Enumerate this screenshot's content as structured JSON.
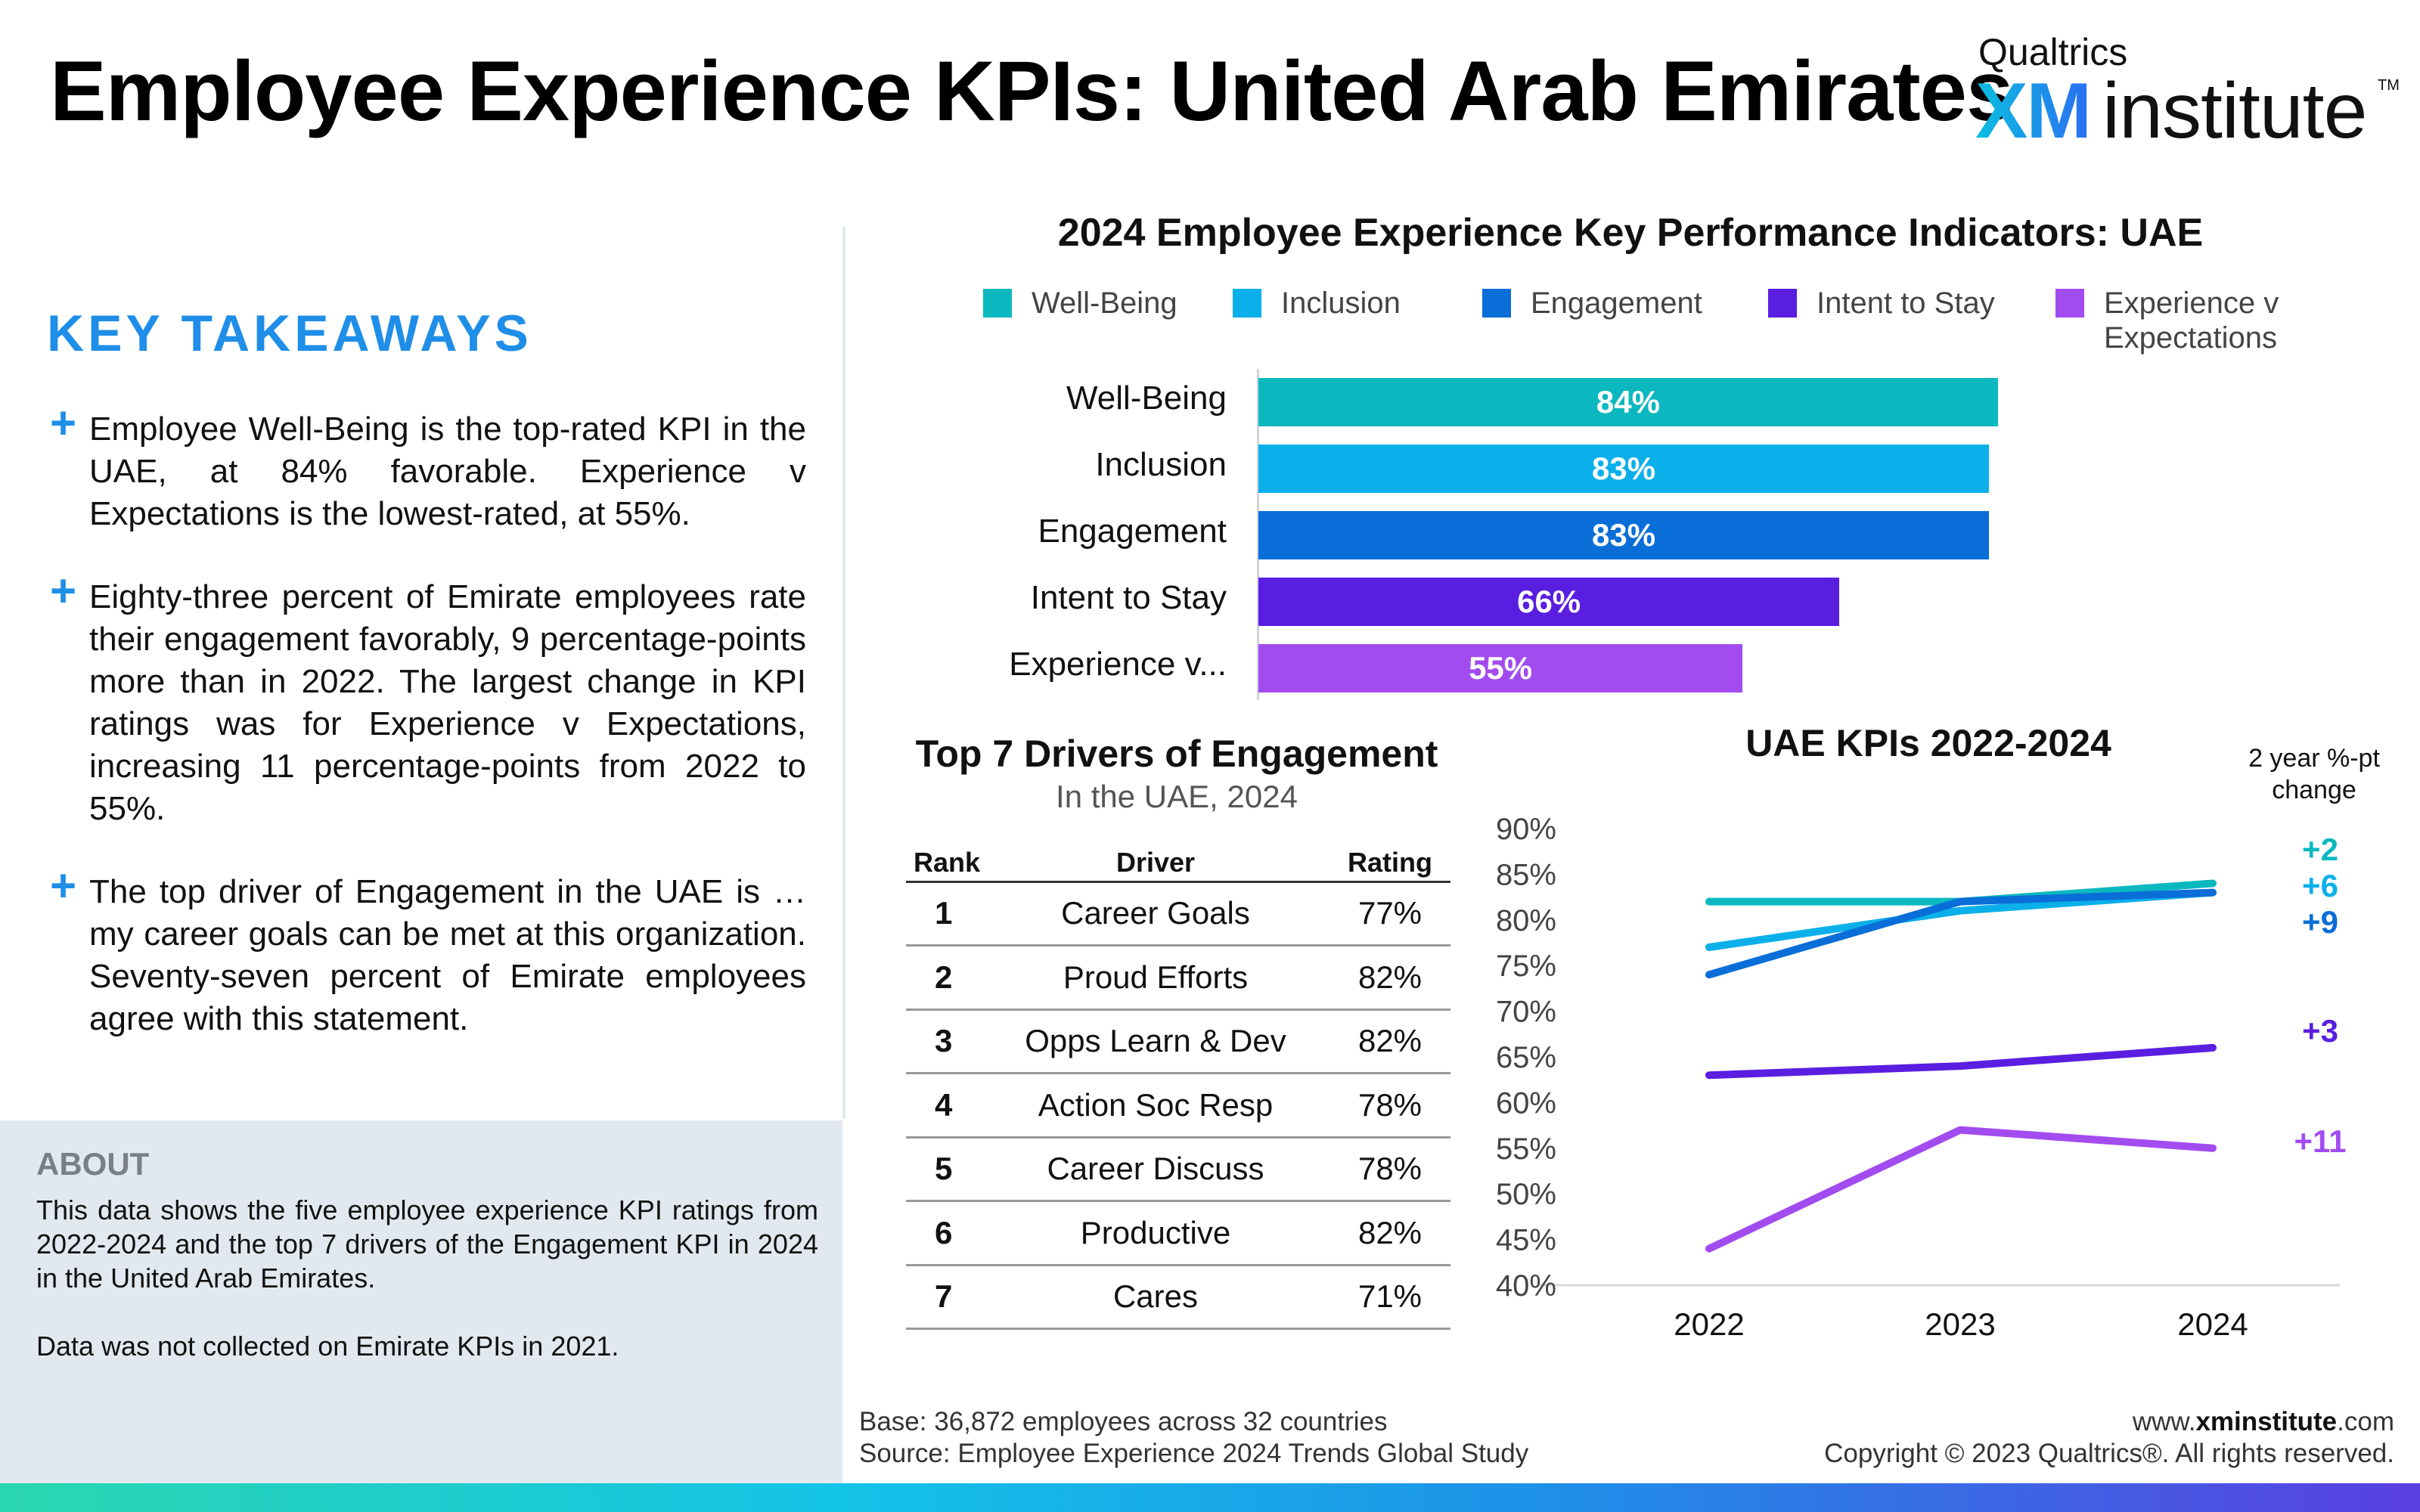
{
  "header": {
    "title": "Employee Experience KPIs: United Arab Emirates",
    "logo": {
      "qualtrics": "Qualtrics",
      "xm": "XM",
      "institute": "institute",
      "tm": "TM"
    }
  },
  "takeaways": {
    "heading": "KEY TAKEAWAYS",
    "items": [
      "Employee Well-Being is the top-rated KPI in the UAE, at 84% favorable. Experience v Expectations is the lowest-rated, at 55%.",
      "Eighty-three percent of Emirate employees rate their engagement favorably, 9 percentage-points more than in 2022. The largest change in KPI ratings was for Experience v Expectations, increasing 11 percentage-points from 2022 to 55%.",
      "The top driver of Engagement in the UAE is …my career goals can be met at this organization. Seventy-seven percent of Emirate employees agree with this statement."
    ]
  },
  "about": {
    "heading": "ABOUT",
    "paragraphs": [
      "This data shows the five employee experience KPI ratings from 2022-2024 and the top 7 drivers of the Engagement KPI in 2024 in the United Arab Emirates.",
      "Data was not collected on Emirate KPIs in 2021."
    ]
  },
  "footer": {
    "base": "Base: 36,872 employees across 32 countries",
    "source": "Source: Employee Experience 2024 Trends Global Study",
    "site_prefix": "www.",
    "site_bold": "xminstitute",
    "site_suffix": ".com",
    "copyright": "Copyright © 2023 Qualtrics®. All rights reserved."
  },
  "colors": {
    "well_being": "#0bb8bf",
    "inclusion": "#0bb0ea",
    "engagement": "#0a6ed8",
    "intent_to_stay": "#5a1ee0",
    "experience": "#a24cf0",
    "accent": "#1f8ee8"
  },
  "chart_data": [
    {
      "type": "bar",
      "title": "2024 Employee Experience Key Performance Indicators: UAE",
      "orientation": "horizontal",
      "legend": [
        "Well-Being",
        "Inclusion",
        "Engagement",
        "Intent to Stay",
        "Experience v Expectations"
      ],
      "legend_placement": "top",
      "categories": [
        "Well-Being",
        "Inclusion",
        "Engagement",
        "Intent to Stay",
        "Experience v..."
      ],
      "values": [
        84,
        83,
        83,
        66,
        55
      ],
      "value_labels": [
        "84%",
        "83%",
        "83%",
        "66%",
        "55%"
      ],
      "xlim": [
        0,
        100
      ],
      "grid": false
    },
    {
      "type": "table",
      "title": "Top 7 Drivers of Engagement",
      "subtitle": "In the UAE, 2024",
      "columns": [
        "Rank",
        "Driver",
        "Rating"
      ],
      "rows": [
        [
          "1",
          "Career Goals",
          "77%"
        ],
        [
          "2",
          "Proud Efforts",
          "82%"
        ],
        [
          "3",
          "Opps Learn & Dev",
          "82%"
        ],
        [
          "4",
          "Action Soc Resp",
          "78%"
        ],
        [
          "5",
          "Career Discuss",
          "78%"
        ],
        [
          "6",
          "Productive",
          "82%"
        ],
        [
          "7",
          "Cares",
          "71%"
        ]
      ]
    },
    {
      "type": "line",
      "title": "UAE KPIs 2022-2024",
      "x": [
        "2022",
        "2023",
        "2024"
      ],
      "ylim": [
        40,
        90
      ],
      "yticks": [
        "90%",
        "85%",
        "80%",
        "75%",
        "70%",
        "65%",
        "60%",
        "55%",
        "50%",
        "45%",
        "40%"
      ],
      "grid": false,
      "change_header": "2 year %-pt change",
      "series": [
        {
          "values": [
            82,
            82,
            84
          ],
          "change": "+2"
        },
        {
          "values": [
            77,
            81,
            83
          ],
          "change": "+6"
        },
        {
          "values": [
            74,
            82,
            83
          ],
          "change": "+9"
        },
        {
          "values": [
            63,
            64,
            66
          ],
          "change": "+3"
        },
        {
          "values": [
            44,
            57,
            55
          ],
          "change": "+11"
        }
      ]
    }
  ]
}
